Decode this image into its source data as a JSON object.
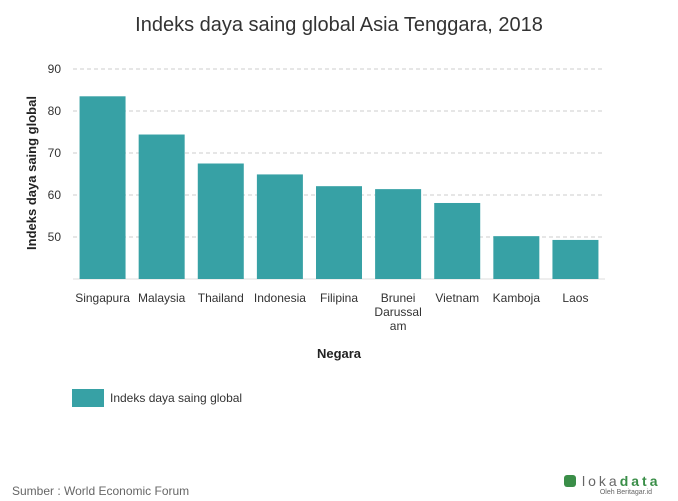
{
  "colors": {
    "bar": "#37a1a5",
    "grid": "#cccccc",
    "logo": "#3a8e48"
  },
  "chart_data": {
    "type": "bar",
    "title": "Indeks daya saing global Asia Tenggara, 2018",
    "xlabel": "Negara",
    "ylabel": "Indeks daya saing global",
    "categories": [
      "Singapura",
      "Malaysia",
      "Thailand",
      "Indonesia",
      "Filipina",
      "Brunei Darussalam",
      "Vietnam",
      "Kamboja",
      "Laos"
    ],
    "category_lines": [
      [
        "Singapura"
      ],
      [
        "Malaysia"
      ],
      [
        "Thailand"
      ],
      [
        "Indonesia"
      ],
      [
        "Filipina"
      ],
      [
        "Brunei",
        "Darussal",
        "am"
      ],
      [
        "Vietnam"
      ],
      [
        "Kamboja"
      ],
      [
        "Laos"
      ]
    ],
    "series": [
      {
        "name": "Indeks daya saing global",
        "values": [
          83.5,
          74.4,
          67.5,
          64.9,
          62.1,
          61.4,
          58.1,
          50.2,
          49.3
        ]
      }
    ],
    "ylim": [
      40,
      90
    ],
    "yticks": [
      50,
      60,
      70,
      80,
      90
    ],
    "grid": true,
    "legend_position": "bottom-left"
  },
  "source": "Sumber : World Economic Forum",
  "logo": {
    "text_light": "loka",
    "text_bold": "data",
    "subtext": "Oleh Beritagar.id"
  }
}
